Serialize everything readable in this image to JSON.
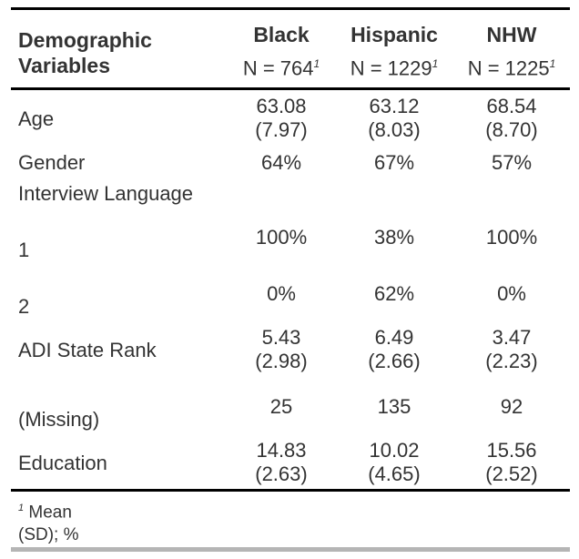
{
  "header": {
    "label_line1": "Demographic",
    "label_line2": "Variables",
    "columns": [
      {
        "name": "Black",
        "n": "N = 764",
        "sup": "1"
      },
      {
        "name": "Hispanic",
        "n": "N = 1229",
        "sup": "1"
      },
      {
        "name": "NHW",
        "n": "N = 1225",
        "sup": "1"
      }
    ]
  },
  "rows": [
    {
      "label": "Age",
      "values": [
        [
          "63.08",
          "(7.97)"
        ],
        [
          "63.12",
          "(8.03)"
        ],
        [
          "68.54",
          "(8.70)"
        ]
      ]
    },
    {
      "label": "Gender",
      "values": [
        [
          "64%"
        ],
        [
          "67%"
        ],
        [
          "57%"
        ]
      ]
    },
    {
      "label": "Interview Language",
      "values": [
        [],
        [],
        []
      ]
    },
    {
      "label": "1",
      "values": [
        [
          "100%"
        ],
        [
          "38%"
        ],
        [
          "100%"
        ]
      ]
    },
    {
      "label": "2",
      "values": [
        [
          "0%"
        ],
        [
          "62%"
        ],
        [
          "0%"
        ]
      ]
    },
    {
      "label": "ADI State Rank",
      "values": [
        [
          "5.43",
          "(2.98)"
        ],
        [
          "6.49",
          "(2.66)"
        ],
        [
          "3.47",
          "(2.23)"
        ]
      ]
    },
    {
      "label": "(Missing)",
      "values": [
        [
          "25"
        ],
        [
          "135"
        ],
        [
          "92"
        ]
      ]
    },
    {
      "label": "Education",
      "values": [
        [
          "14.83",
          "(2.63)"
        ],
        [
          "10.02",
          "(4.65)"
        ],
        [
          "15.56",
          "(2.52)"
        ]
      ]
    }
  ],
  "footnote": {
    "sup": "1",
    "line1": "Mean",
    "line2": "(SD); %"
  }
}
